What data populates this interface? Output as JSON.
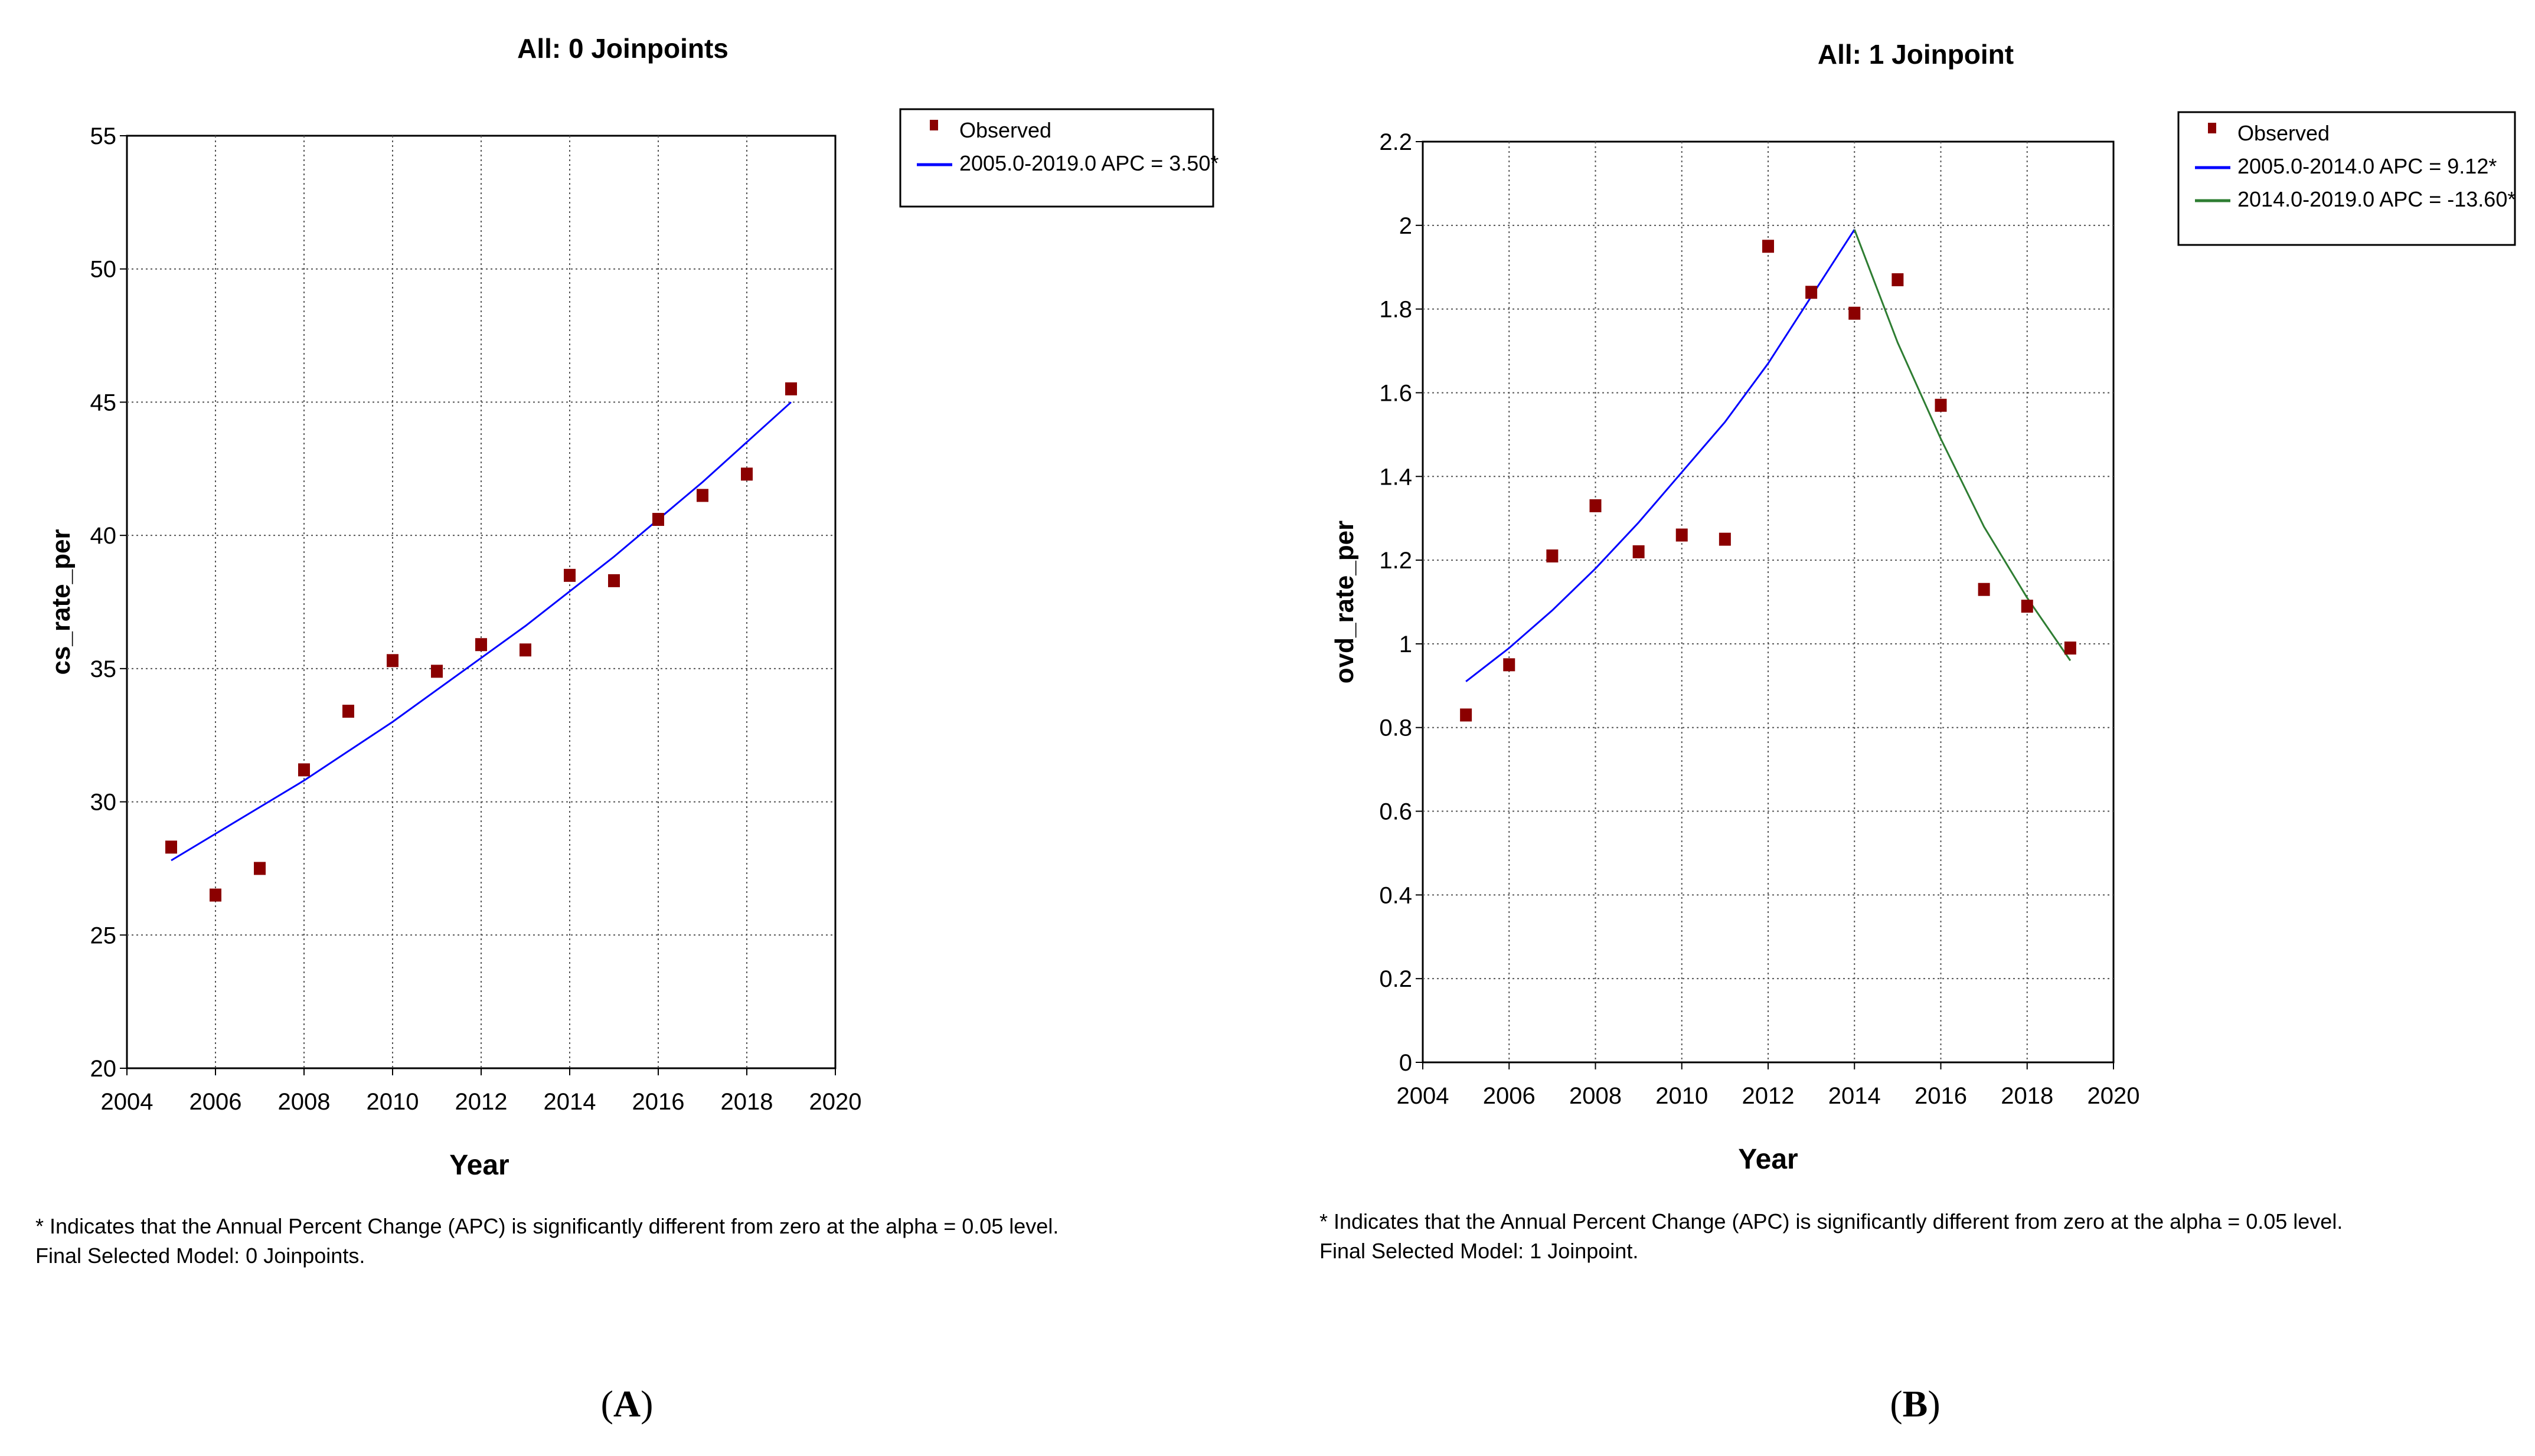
{
  "chart_data": [
    {
      "type": "scatter",
      "panel_label": "A",
      "title": "All: 0 Joinpoints",
      "xlabel": "Year",
      "ylabel": "cs_rate_per",
      "xlim": [
        2004,
        2020
      ],
      "ylim": [
        20,
        55
      ],
      "xticks": [
        "2004",
        "2006",
        "2008",
        "2010",
        "2012",
        "2014",
        "2016",
        "2018",
        "2020"
      ],
      "yticks": [
        "20",
        "25",
        "30",
        "35",
        "40",
        "45",
        "50",
        "55"
      ],
      "grid": true,
      "legend": {
        "position": "top-right",
        "entries": [
          "Observed",
          "2005.0-2019.0 APC  = 3.50*"
        ]
      },
      "observed": {
        "name": "Observed",
        "color": "#8b0000",
        "x": [
          2005,
          2006,
          2007,
          2008,
          2009,
          2010,
          2011,
          2012,
          2013,
          2014,
          2015,
          2016,
          2017,
          2018,
          2019
        ],
        "y": [
          28.3,
          26.5,
          27.5,
          31.2,
          33.4,
          35.3,
          34.9,
          35.9,
          35.7,
          38.5,
          38.3,
          40.6,
          41.5,
          42.3,
          45.5
        ]
      },
      "series": [
        {
          "name": "2005.0-2019.0 APC  = 3.50*",
          "color": "#0000ff",
          "type": "line",
          "x": [
            2005,
            2006,
            2007,
            2008,
            2009,
            2010,
            2011,
            2012,
            2013,
            2014,
            2015,
            2016,
            2017,
            2018,
            2019
          ],
          "y": [
            27.8,
            28.8,
            29.8,
            30.8,
            31.9,
            33.0,
            34.2,
            35.4,
            36.6,
            37.9,
            39.2,
            40.6,
            42.0,
            43.5,
            45.0
          ]
        }
      ],
      "footnote_1": "* Indicates that the Annual Percent Change (APC) is significantly different from zero at the alpha = 0.05 level.",
      "footnote_2": "Final Selected Model: 0 Joinpoints."
    },
    {
      "type": "scatter",
      "panel_label": "B",
      "title": "All: 1 Joinpoint",
      "xlabel": "Year",
      "ylabel": "ovd_rate_per",
      "xlim": [
        2004,
        2020
      ],
      "ylim": [
        0,
        2.2
      ],
      "xticks": [
        "2004",
        "2006",
        "2008",
        "2010",
        "2012",
        "2014",
        "2016",
        "2018",
        "2020"
      ],
      "yticks": [
        "0",
        "0.2",
        "0.4",
        "0.6",
        "0.8",
        "1",
        "1.2",
        "1.4",
        "1.6",
        "1.8",
        "2",
        "2.2"
      ],
      "grid": true,
      "legend": {
        "position": "top-right",
        "entries": [
          "Observed",
          "2005.0-2014.0 APC  =  9.12*",
          "2014.0-2019.0 APC  = -13.60*"
        ]
      },
      "observed": {
        "name": "Observed",
        "color": "#8b0000",
        "x": [
          2005,
          2006,
          2007,
          2008,
          2009,
          2010,
          2011,
          2012,
          2013,
          2014,
          2015,
          2016,
          2017,
          2018,
          2019
        ],
        "y": [
          0.83,
          0.95,
          1.21,
          1.33,
          1.22,
          1.26,
          1.25,
          1.95,
          1.84,
          1.79,
          1.87,
          1.57,
          1.13,
          1.09,
          0.99
        ]
      },
      "series": [
        {
          "name": "2005.0-2014.0 APC  =  9.12*",
          "color": "#0000ff",
          "type": "line",
          "x": [
            2005,
            2006,
            2007,
            2008,
            2009,
            2010,
            2011,
            2012,
            2013,
            2014
          ],
          "y": [
            0.91,
            0.99,
            1.08,
            1.18,
            1.29,
            1.41,
            1.53,
            1.67,
            1.83,
            1.99
          ]
        },
        {
          "name": "2014.0-2019.0 APC  = -13.60*",
          "color": "#2e7d32",
          "type": "line",
          "x": [
            2014,
            2015,
            2016,
            2017,
            2018,
            2019
          ],
          "y": [
            1.99,
            1.72,
            1.49,
            1.28,
            1.11,
            0.96
          ]
        }
      ],
      "footnote_1": "* Indicates that the Annual Percent Change (APC) is significantly different from zero at the alpha = 0.05 level.",
      "footnote_2": "Final Selected Model: 1 Joinpoint."
    }
  ]
}
